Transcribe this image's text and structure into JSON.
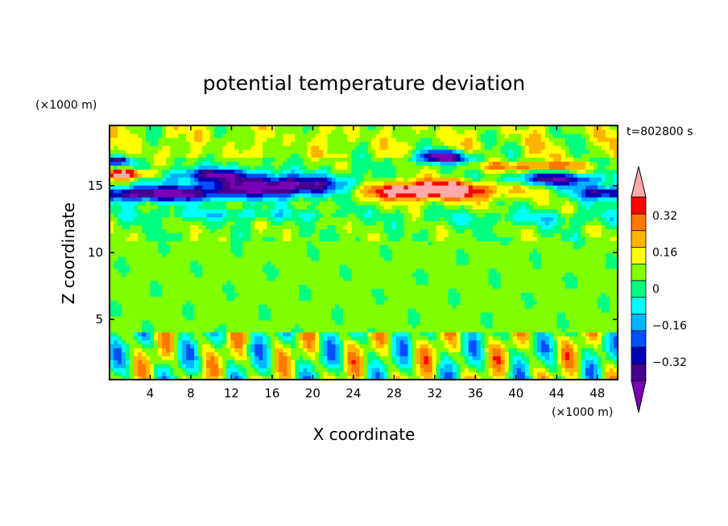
{
  "chart_data": {
    "type": "heatmap",
    "title": "potential temperature deviation",
    "xlabel": "X coordinate",
    "ylabel": "Z coordinate",
    "x_unit": "(×1000 m)",
    "y_unit": "(×1000 m)",
    "time_label": "t=802800 s",
    "xlim": [
      0,
      50
    ],
    "ylim": [
      0.5,
      19.5
    ],
    "x_ticks": [
      4,
      8,
      12,
      16,
      20,
      24,
      28,
      32,
      36,
      40,
      44,
      48
    ],
    "y_ticks": [
      5,
      10,
      15
    ],
    "colorbar": {
      "levels": [
        -0.48,
        -0.4,
        -0.32,
        -0.24,
        -0.16,
        -0.08,
        0,
        0.08,
        0.16,
        0.24,
        0.32,
        0.4,
        0.48
      ],
      "tick_labels": [
        "0.32",
        "0.16",
        "0",
        "−0.16",
        "−0.32"
      ],
      "tick_values": [
        0.32,
        0.16,
        0,
        -0.16,
        -0.32
      ],
      "colors": [
        "#7a00b4",
        "#46008c",
        "#0000b4",
        "#0050ff",
        "#00b4ff",
        "#00ffff",
        "#00ff7f",
        "#7fff00",
        "#ffff00",
        "#ffb400",
        "#ff7800",
        "#ff0000",
        "#ffaaaa"
      ]
    },
    "features": [
      {
        "x": [
          0,
          14
        ],
        "z": [
          13.4,
          15.1
        ],
        "value": -0.4
      },
      {
        "x": [
          9,
          26
        ],
        "z": [
          13.6,
          16.4
        ],
        "value": -0.45
      },
      {
        "x": [
          22,
          41
        ],
        "z": [
          13.1,
          15.8
        ],
        "value": 0.45
      },
      {
        "x": [
          0,
          4
        ],
        "z": [
          15.4,
          16.4
        ],
        "value": 0.45
      },
      {
        "x": [
          29,
          37
        ],
        "z": [
          16.0,
          17.9
        ],
        "value": -0.42
      },
      {
        "x": [
          38,
          50
        ],
        "z": [
          14.3,
          16.5
        ],
        "value": -0.35
      },
      {
        "x": [
          0,
          24
        ],
        "z": [
          12.3,
          13.5
        ],
        "value": -0.12
      },
      {
        "x": [
          33,
          50
        ],
        "z": [
          11.9,
          13.4
        ],
        "value": -0.1
      },
      {
        "x": [
          26,
          44
        ],
        "z": [
          16.2,
          17.6
        ],
        "value": 0.2
      },
      {
        "x": [
          0,
          50
        ],
        "z": [
          0.5,
          3.8
        ],
        "value": -0.3
      },
      {
        "x": [
          0,
          50
        ],
        "z": [
          0.5,
          3.8
        ],
        "value": 0.3
      }
    ]
  }
}
